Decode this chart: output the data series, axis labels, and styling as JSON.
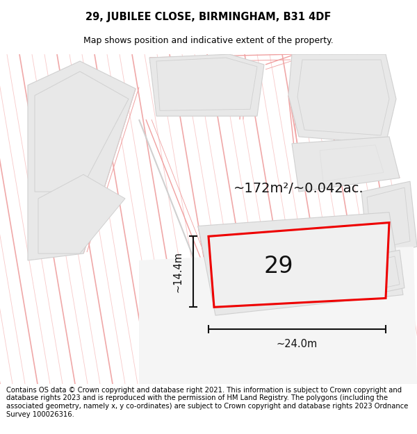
{
  "title_line1": "29, JUBILEE CLOSE, BIRMINGHAM, B31 4DF",
  "title_line2": "Map shows position and indicative extent of the property.",
  "footer_text": "Contains OS data © Crown copyright and database right 2021. This information is subject to Crown copyright and database rights 2023 and is reproduced with the permission of HM Land Registry. The polygons (including the associated geometry, namely x, y co-ordinates) are subject to Crown copyright and database rights 2023 Ordnance Survey 100026316.",
  "area_label": "~172m²/~0.042ac.",
  "property_number": "29",
  "width_label": "~24.0m",
  "height_label": "~14.4m",
  "map_bg": "#ffffff",
  "building_fill": "#e8e8e8",
  "building_edge": "#c0c0c0",
  "highlight_color": "#ee0000",
  "highlight_fill": "#f0f0f0",
  "line_color": "#111111",
  "pink_line": "#f0a0a0",
  "light_gray_line": "#d0d0d0",
  "title_fontsize": 10.5,
  "subtitle_fontsize": 9,
  "footer_fontsize": 7.2,
  "area_fontsize": 14,
  "number_fontsize": 24,
  "dim_fontsize": 10.5
}
